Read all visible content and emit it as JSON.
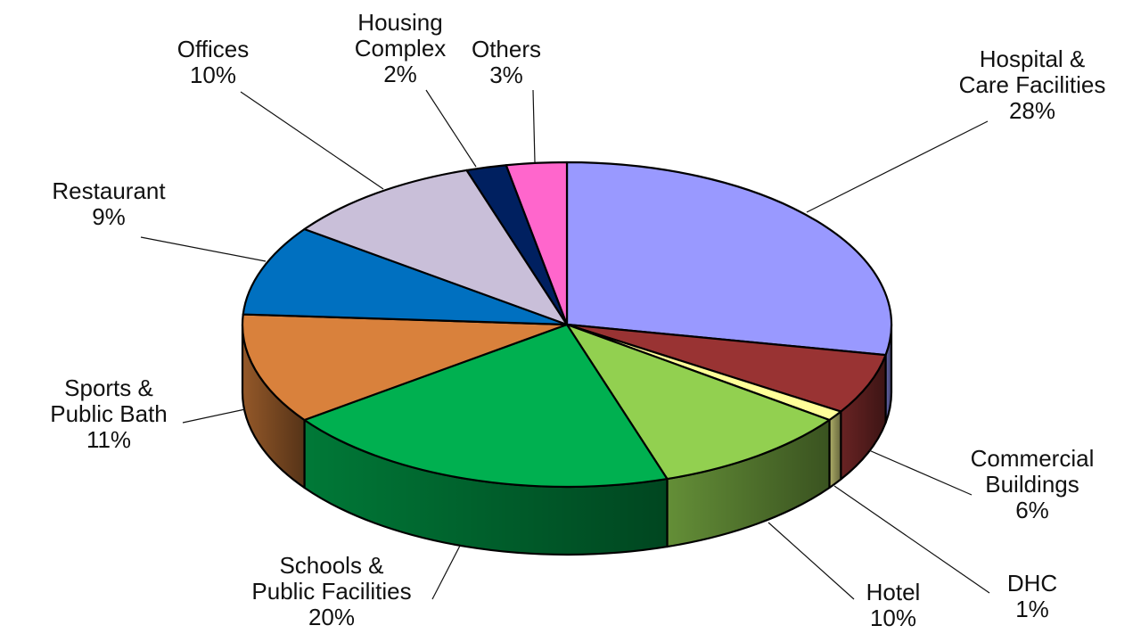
{
  "chart_data": {
    "type": "pie",
    "title": "",
    "style": "3d-exploded-none",
    "slices": [
      {
        "label": [
          "Hospital &",
          "Care Facilities"
        ],
        "value": 28,
        "color": "#9999ff"
      },
      {
        "label": [
          "Commercial",
          "Buildings"
        ],
        "value": 6,
        "color": "#993333"
      },
      {
        "label": [
          "DHC"
        ],
        "value": 1,
        "color": "#ffff99"
      },
      {
        "label": [
          "Hotel"
        ],
        "value": 10,
        "color": "#92d050"
      },
      {
        "label": [
          "Schools &",
          "Public Facilities"
        ],
        "value": 20,
        "color": "#00b050"
      },
      {
        "label": [
          "Sports &",
          "Public Bath"
        ],
        "value": 11,
        "color": "#d9813c"
      },
      {
        "label": [
          "Restaurant"
        ],
        "value": 9,
        "color": "#0070c0"
      },
      {
        "label": [
          "Offices"
        ],
        "value": 10,
        "color": "#c9bfd9"
      },
      {
        "label": [
          "Housing",
          "Complex"
        ],
        "value": 2,
        "color": "#002060"
      },
      {
        "label": [
          "Others"
        ],
        "value": 3,
        "color": "#ff66cc"
      }
    ],
    "value_suffix": "%"
  }
}
